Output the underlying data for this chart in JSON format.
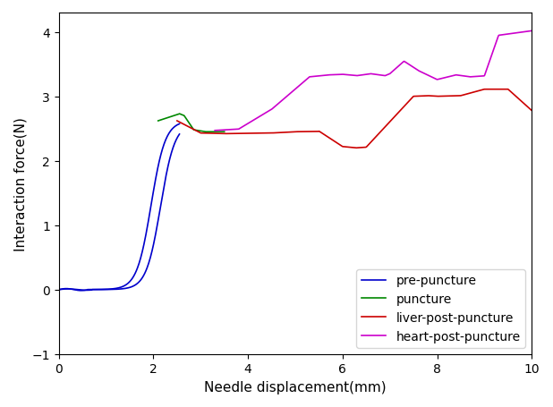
{
  "xlabel": "Needle displacement(mm)",
  "ylabel": "Interaction force(N)",
  "xlim": [
    0,
    10
  ],
  "ylim": [
    -1,
    4.3
  ],
  "yticks": [
    -1,
    0,
    1,
    2,
    3,
    4
  ],
  "xticks": [
    0,
    2,
    4,
    6,
    8,
    10
  ],
  "legend_labels": [
    "pre-puncture",
    "puncture",
    "liver-post-puncture",
    "heart-post-puncture"
  ],
  "colors": {
    "pre_puncture": "#0000cc",
    "puncture": "#008800",
    "liver_post": "#cc0000",
    "heart_post": "#cc00cc"
  },
  "background_color": "#ffffff"
}
